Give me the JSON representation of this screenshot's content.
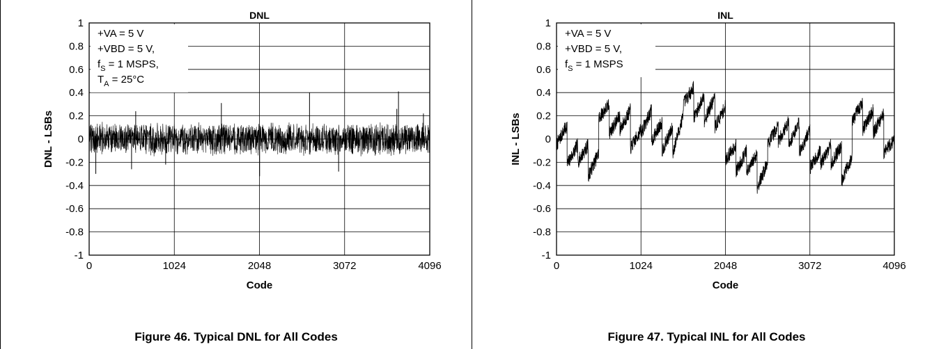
{
  "chart_data": [
    {
      "type": "line",
      "title": "DNL",
      "xlabel": "Code",
      "ylabel": "DNL - LSBs",
      "xlim": [
        0,
        4096
      ],
      "ylim": [
        -1,
        1
      ],
      "xticks": [
        "0",
        "1024",
        "2048",
        "3072",
        "4096"
      ],
      "yticks": [
        "1",
        "0.8",
        "0.6",
        "0.4",
        "0.2",
        "0",
        "-0.2",
        "-0.4",
        "-0.6",
        "-0.8",
        "-1"
      ],
      "grid": true,
      "annotation": {
        "lines": [
          {
            "text": "+VA = 5 V"
          },
          {
            "text": "+VBD = 5 V,"
          },
          {
            "text": "f",
            "sub": "S",
            "rest": " = 1 MSPS,"
          },
          {
            "text": "T",
            "sub": "A",
            "rest": " = 25°C"
          }
        ]
      },
      "noise_band": [
        -0.15,
        0.15
      ],
      "spikes": [
        {
          "x": 80,
          "y": -0.3
        },
        {
          "x": 510,
          "y": -0.26
        },
        {
          "x": 560,
          "y": 0.24
        },
        {
          "x": 920,
          "y": -0.22
        },
        {
          "x": 1590,
          "y": 0.31
        },
        {
          "x": 2050,
          "y": -0.32
        },
        {
          "x": 2650,
          "y": 0.4
        },
        {
          "x": 3000,
          "y": -0.28
        },
        {
          "x": 3700,
          "y": 0.26
        },
        {
          "x": 3720,
          "y": 0.41
        },
        {
          "x": 4020,
          "y": 0.22
        }
      ],
      "caption": "Figure 46. Typical DNL for All Codes"
    },
    {
      "type": "line",
      "title": "INL",
      "xlabel": "Code",
      "ylabel": "INL - LSBs",
      "xlim": [
        0,
        4096
      ],
      "ylim": [
        -1,
        1
      ],
      "xticks": [
        "0",
        "1024",
        "2048",
        "3072",
        "4096"
      ],
      "yticks": [
        "1",
        "0.8",
        "0.6",
        "0.4",
        "0.2",
        "0",
        "-0.2",
        "-0.4",
        "-0.6",
        "-0.8",
        "-1"
      ],
      "grid": true,
      "annotation": {
        "lines": [
          {
            "text": "+VA = 5 V"
          },
          {
            "text": "+VBD = 5 V,"
          },
          {
            "text": "f",
            "sub": "S",
            "rest": " = 1 MSPS"
          }
        ]
      },
      "segments": [
        {
          "x0": 0,
          "x1": 128,
          "y0": -0.05,
          "y1": 0.12
        },
        {
          "x0": 128,
          "x1": 256,
          "y0": -0.22,
          "y1": -0.05
        },
        {
          "x0": 256,
          "x1": 384,
          "y0": -0.2,
          "y1": -0.05
        },
        {
          "x0": 384,
          "x1": 512,
          "y0": -0.32,
          "y1": -0.12
        },
        {
          "x0": 512,
          "x1": 640,
          "y0": 0.18,
          "y1": 0.3
        },
        {
          "x0": 640,
          "x1": 768,
          "y0": 0.05,
          "y1": 0.2
        },
        {
          "x0": 768,
          "x1": 896,
          "y0": 0.08,
          "y1": 0.25
        },
        {
          "x0": 896,
          "x1": 1024,
          "y0": -0.08,
          "y1": 0.08
        },
        {
          "x0": 1024,
          "x1": 1152,
          "y0": 0.05,
          "y1": 0.25
        },
        {
          "x0": 1152,
          "x1": 1280,
          "y0": -0.02,
          "y1": 0.15
        },
        {
          "x0": 1280,
          "x1": 1408,
          "y0": -0.1,
          "y1": 0.1
        },
        {
          "x0": 1408,
          "x1": 1536,
          "y0": -0.12,
          "y1": 0.2
        },
        {
          "x0": 1536,
          "x1": 1664,
          "y0": 0.3,
          "y1": 0.45
        },
        {
          "x0": 1664,
          "x1": 1792,
          "y0": 0.18,
          "y1": 0.38
        },
        {
          "x0": 1792,
          "x1": 1920,
          "y0": 0.16,
          "y1": 0.36
        },
        {
          "x0": 1920,
          "x1": 2048,
          "y0": 0.1,
          "y1": 0.28
        },
        {
          "x0": 2048,
          "x1": 2176,
          "y0": -0.18,
          "y1": -0.05
        },
        {
          "x0": 2176,
          "x1": 2304,
          "y0": -0.28,
          "y1": -0.1
        },
        {
          "x0": 2304,
          "x1": 2432,
          "y0": -0.3,
          "y1": -0.12
        },
        {
          "x0": 2432,
          "x1": 2560,
          "y0": -0.42,
          "y1": -0.2
        },
        {
          "x0": 2560,
          "x1": 2688,
          "y0": -0.05,
          "y1": 0.12
        },
        {
          "x0": 2688,
          "x1": 2816,
          "y0": -0.02,
          "y1": 0.15
        },
        {
          "x0": 2816,
          "x1": 2944,
          "y0": -0.05,
          "y1": 0.15
        },
        {
          "x0": 2944,
          "x1": 3072,
          "y0": -0.12,
          "y1": 0.08
        },
        {
          "x0": 3072,
          "x1": 3200,
          "y0": -0.25,
          "y1": -0.1
        },
        {
          "x0": 3200,
          "x1": 3328,
          "y0": -0.22,
          "y1": -0.05
        },
        {
          "x0": 3328,
          "x1": 3456,
          "y0": -0.22,
          "y1": -0.05
        },
        {
          "x0": 3456,
          "x1": 3584,
          "y0": -0.36,
          "y1": -0.15
        },
        {
          "x0": 3584,
          "x1": 3712,
          "y0": 0.15,
          "y1": 0.32
        },
        {
          "x0": 3712,
          "x1": 3840,
          "y0": 0.08,
          "y1": 0.25
        },
        {
          "x0": 3840,
          "x1": 3968,
          "y0": 0.05,
          "y1": 0.22
        },
        {
          "x0": 3968,
          "x1": 4096,
          "y0": -0.12,
          "y1": 0.0
        }
      ],
      "caption": "Figure 47. Typical INL for All Codes"
    }
  ]
}
